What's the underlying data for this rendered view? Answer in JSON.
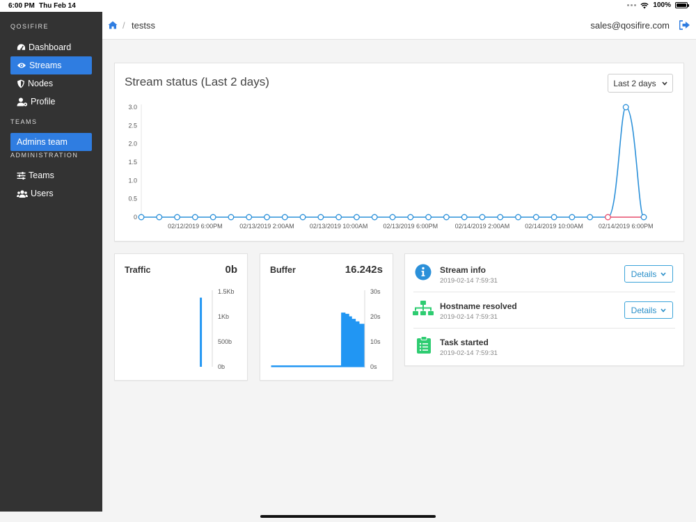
{
  "status_bar": {
    "time": "6:00 PM",
    "date": "Thu Feb 14",
    "battery": "100%"
  },
  "sidebar": {
    "brand": "QOSIFIRE",
    "items": [
      {
        "label": "Dashboard",
        "icon": "dashboard-icon",
        "active": false
      },
      {
        "label": "Streams",
        "icon": "eye-icon",
        "active": true
      },
      {
        "label": "Nodes",
        "icon": "shield-icon",
        "active": false
      },
      {
        "label": "Profile",
        "icon": "user-cog-icon",
        "active": false
      }
    ],
    "teams_label": "TEAMS",
    "teams": [
      {
        "label": "Admins team",
        "active": true
      }
    ],
    "admin_label": "ADMINISTRATION",
    "admin_items": [
      {
        "label": "Teams",
        "icon": "sliders-icon"
      },
      {
        "label": "Users",
        "icon": "users-icon"
      }
    ]
  },
  "topbar": {
    "breadcrumb": "testss",
    "separator": "/",
    "email": "sales@qosifire.com"
  },
  "stream_status": {
    "title": "Stream status (Last 2 days)",
    "range_label": "Last 2 days"
  },
  "chart_data": [
    {
      "type": "line",
      "title": "Stream status (Last 2 days)",
      "x_tick_labels": [
        "02/12/2019 6:00PM",
        "02/13/2019 2:00AM",
        "02/13/2019 10:00AM",
        "02/13/2019 6:00PM",
        "02/14/2019 2:00AM",
        "02/14/2019 10:00AM",
        "02/14/2019 6:00PM"
      ],
      "y_tick_labels": [
        "0",
        "0.5",
        "1.0",
        "1.5",
        "2.0",
        "2.5",
        "3.0"
      ],
      "ylim": [
        0,
        3
      ],
      "point_count": 29,
      "series": [
        {
          "color": "#2b90d9",
          "values": [
            0,
            0,
            0,
            0,
            0,
            0,
            0,
            0,
            0,
            0,
            0,
            0,
            0,
            0,
            0,
            0,
            0,
            0,
            0,
            0,
            0,
            0,
            0,
            0,
            0,
            0,
            0,
            3,
            0
          ]
        },
        {
          "color": "#e64b6b",
          "values": [
            null,
            null,
            null,
            null,
            null,
            null,
            null,
            null,
            null,
            null,
            null,
            null,
            null,
            null,
            null,
            null,
            null,
            null,
            null,
            null,
            null,
            null,
            null,
            null,
            null,
            null,
            0,
            0,
            0
          ]
        }
      ],
      "grid": false
    },
    {
      "type": "bar",
      "title": "Traffic",
      "y_tick_labels": [
        "0b",
        "500b",
        "1Kb",
        "1.5Kb"
      ],
      "ylim": [
        0,
        1500
      ],
      "x": [
        0.9
      ],
      "values": [
        1380
      ],
      "color": "#2196f3"
    },
    {
      "type": "area",
      "title": "Buffer",
      "y_tick_labels": [
        "0s",
        "10s",
        "20s",
        "30s"
      ],
      "ylim": [
        0,
        30
      ],
      "x": [
        0,
        0.75,
        0.751,
        0.79,
        0.83,
        0.86,
        0.9,
        0.94,
        1.0
      ],
      "values": [
        0.4,
        0.4,
        21.5,
        21,
        20,
        19,
        18,
        17,
        16.5
      ],
      "color": "#2196f3"
    }
  ],
  "traffic": {
    "title": "Traffic",
    "value": "0b"
  },
  "buffer": {
    "title": "Buffer",
    "value": "16.242s"
  },
  "events": [
    {
      "title": "Stream info",
      "time": "2019-02-14 7:59:31",
      "icon": "info-icon",
      "details_label": "Details"
    },
    {
      "title": "Hostname resolved",
      "time": "2019-02-14 7:59:31",
      "icon": "sitemap-icon",
      "details_label": "Details"
    },
    {
      "title": "Task started",
      "time": "2019-02-14 7:59:31",
      "icon": "clipboard-list-icon"
    }
  ],
  "colors": {
    "accent": "#2f7de1",
    "sidebar": "#333333",
    "line": "#2b90d9",
    "alert": "#e64b6b",
    "success": "#2ecc71"
  }
}
